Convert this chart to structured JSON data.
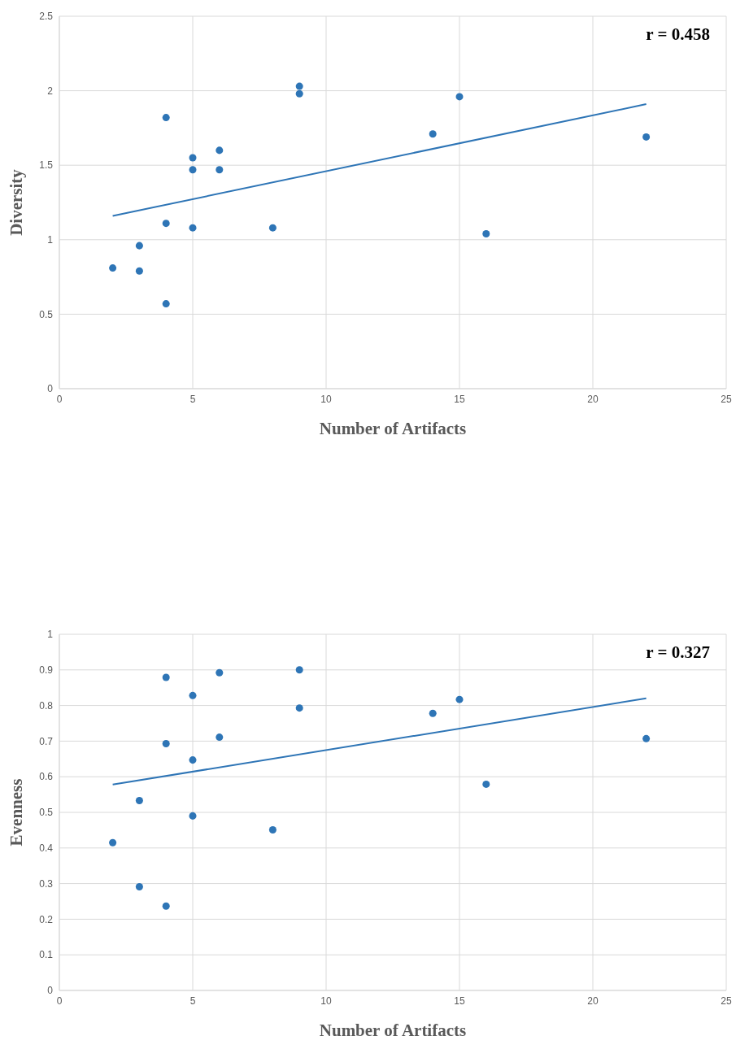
{
  "chart_data": [
    {
      "type": "scatter",
      "xlabel": "Number of Artifacts",
      "ylabel": "Diversity",
      "annotations": [
        "r = 0.458"
      ],
      "xlim": [
        0,
        25
      ],
      "xticks": [
        0,
        5,
        10,
        15,
        20,
        25
      ],
      "ylim": [
        0,
        2.5
      ],
      "yticks": [
        0,
        0.5,
        1,
        1.5,
        2,
        2.5
      ],
      "grid": true,
      "series": [
        {
          "color": "#2e75b6",
          "marker": "circle",
          "x": [
            2,
            3,
            3,
            4,
            4,
            4,
            5,
            5,
            5,
            6,
            6,
            8,
            9,
            9,
            14,
            15,
            16,
            22
          ],
          "values": [
            0.81,
            0.96,
            0.79,
            1.82,
            1.11,
            0.57,
            1.55,
            1.47,
            1.08,
            1.6,
            1.47,
            1.08,
            2.03,
            1.98,
            1.71,
            1.96,
            1.04,
            1.69
          ]
        },
        {
          "type": "line",
          "color": "#2e75b6",
          "marker": "none",
          "line_style": "solid",
          "x": [
            2,
            22
          ],
          "values": [
            1.16,
            1.91
          ]
        }
      ]
    },
    {
      "type": "scatter",
      "xlabel": "Number of Artifacts",
      "ylabel": "Evenness",
      "annotations": [
        "r = 0.327"
      ],
      "xlim": [
        0,
        25
      ],
      "xticks": [
        0,
        5,
        10,
        15,
        20,
        25
      ],
      "ylim": [
        0,
        1
      ],
      "yticks": [
        0,
        0.1,
        0.2,
        0.3,
        0.4,
        0.5,
        0.6,
        0.7,
        0.8,
        0.9,
        1
      ],
      "grid": true,
      "series": [
        {
          "color": "#2e75b6",
          "marker": "circle",
          "x": [
            2,
            3,
            3,
            4,
            4,
            4,
            5,
            5,
            5,
            6,
            6,
            8,
            9,
            9,
            14,
            15,
            16,
            22
          ],
          "values": [
            0.415,
            0.533,
            0.291,
            0.879,
            0.693,
            0.237,
            0.828,
            0.647,
            0.49,
            0.892,
            0.711,
            0.451,
            0.9,
            0.793,
            0.778,
            0.817,
            0.579,
            0.707
          ]
        },
        {
          "type": "line",
          "color": "#2e75b6",
          "marker": "none",
          "line_style": "solid",
          "x": [
            2,
            22
          ],
          "values": [
            0.578,
            0.82
          ]
        }
      ]
    }
  ]
}
